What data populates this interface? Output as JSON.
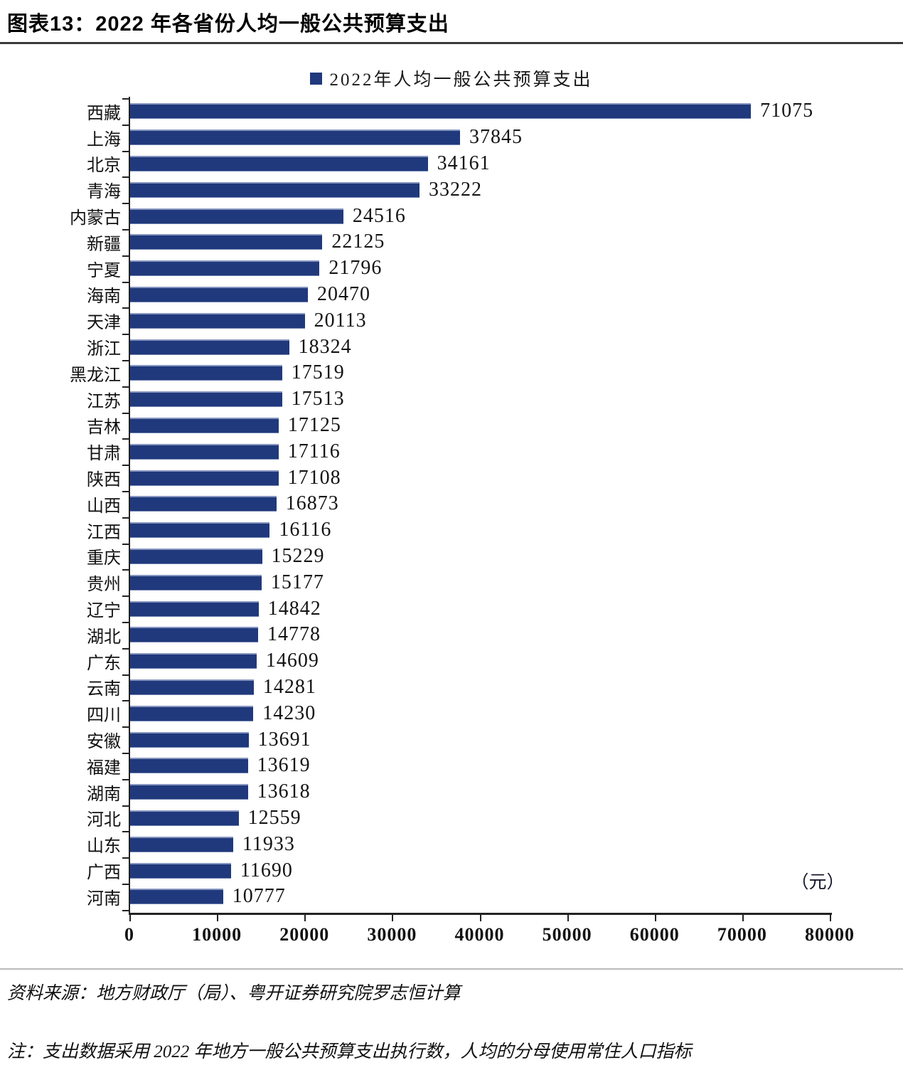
{
  "header": {
    "title": "图表13：2022 年各省份人均一般公共预算支出"
  },
  "legend": {
    "label": "2022年人均一般公共预算支出",
    "swatch_color": "#20397C"
  },
  "chart_data": {
    "type": "bar",
    "orientation": "horizontal",
    "title": "2022年人均一般公共预算支出",
    "unit_label": "（元）",
    "categories": [
      "西藏",
      "上海",
      "北京",
      "青海",
      "内蒙古",
      "新疆",
      "宁夏",
      "海南",
      "天津",
      "浙江",
      "黑龙江",
      "江苏",
      "吉林",
      "甘肃",
      "陕西",
      "山西",
      "江西",
      "重庆",
      "贵州",
      "辽宁",
      "湖北",
      "广东",
      "云南",
      "四川",
      "安徽",
      "福建",
      "湖南",
      "河北",
      "山东",
      "广西",
      "河南"
    ],
    "values": [
      71075,
      37845,
      34161,
      33222,
      24516,
      22125,
      21796,
      20470,
      20113,
      18324,
      17519,
      17513,
      17125,
      17116,
      17108,
      16873,
      16116,
      15229,
      15177,
      14842,
      14778,
      14609,
      14281,
      14230,
      13691,
      13619,
      13618,
      12559,
      11933,
      11690,
      10777
    ],
    "xlim": [
      0,
      80000
    ],
    "x_ticks": [
      0,
      10000,
      20000,
      30000,
      40000,
      50000,
      60000,
      70000,
      80000
    ],
    "bar_color": "#20397C",
    "axis_color": "#222222",
    "grid": false,
    "legend_position": "top-center",
    "value_labels": true
  },
  "footer": {
    "source": "资料来源：地方财政厅（局）、粤开证券研究院罗志恒计算",
    "note": "注：支出数据采用 2022 年地方一般公共预算支出执行数，人均的分母使用常住人口指标"
  }
}
